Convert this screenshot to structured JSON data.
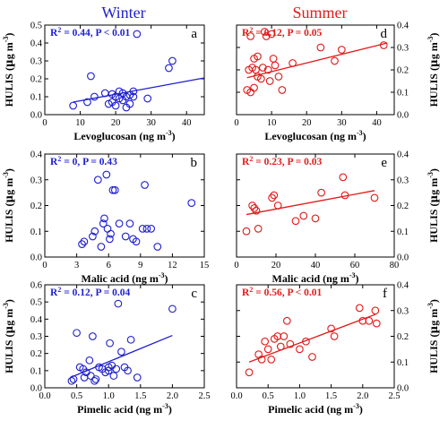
{
  "colors": {
    "winter": "#1f1fd0",
    "summer": "#e21b1b",
    "axis": "#000000"
  },
  "column_titles": {
    "winter": "Winter",
    "summer": "Summer"
  },
  "y_axis_label": {
    "main": "HULIS (",
    "mu": "µ",
    "g": "g m",
    "exp": "-3",
    "close": ")"
  },
  "chart_data": [
    {
      "id": "a",
      "type": "scatter",
      "series": "winter",
      "letter": "a",
      "stats": {
        "r2": "0.44",
        "p": "P < 0.01"
      },
      "xlabel": {
        "main": "Levoglucosan (ng m",
        "exp": "-3",
        "close": ")"
      },
      "xlim": [
        0,
        45
      ],
      "ylim": [
        0,
        0.5
      ],
      "xticks": [
        0,
        10,
        20,
        30,
        40
      ],
      "xtick_labels": [
        "0",
        "10",
        "20",
        "30",
        "40"
      ],
      "yticks": [
        0,
        0.1,
        0.2,
        0.3,
        0.4,
        0.5
      ],
      "ytick_labels": [
        "0.0",
        "0.1",
        "0.2",
        "0.3",
        "0.4",
        "0.5"
      ],
      "tick_side": "left",
      "fit": {
        "x": [
          8,
          45
        ],
        "y": [
          0.07,
          0.205
        ]
      },
      "points": [
        [
          8,
          0.05
        ],
        [
          12,
          0.07
        ],
        [
          13,
          0.215
        ],
        [
          14,
          0.1
        ],
        [
          17,
          0.12
        ],
        [
          18,
          0.06
        ],
        [
          19,
          0.07
        ],
        [
          19,
          0.115
        ],
        [
          20,
          0.1
        ],
        [
          20,
          0.05
        ],
        [
          21,
          0.13
        ],
        [
          21,
          0.09
        ],
        [
          22,
          0.12
        ],
        [
          22,
          0.08
        ],
        [
          23,
          0.1
        ],
        [
          23,
          0.04
        ],
        [
          24,
          0.11
        ],
        [
          24,
          0.06
        ],
        [
          25,
          0.13
        ],
        [
          25,
          0.1
        ],
        [
          26,
          0.45
        ],
        [
          29,
          0.09
        ],
        [
          35,
          0.26
        ],
        [
          36,
          0.3
        ]
      ]
    },
    {
      "id": "d",
      "type": "scatter",
      "series": "summer",
      "letter": "d",
      "stats": {
        "r2": "0.12",
        "p": "P = 0.05"
      },
      "xlabel": {
        "main": "Levoglucosan (ng m",
        "exp": "-3",
        "close": ")"
      },
      "xlim": [
        0,
        45
      ],
      "ylim": [
        0,
        0.4
      ],
      "xticks": [
        0,
        10,
        20,
        30,
        40
      ],
      "xtick_labels": [
        "0",
        "10",
        "20",
        "30",
        "40"
      ],
      "yticks": [
        0,
        0.1,
        0.2,
        0.3,
        0.4
      ],
      "ytick_labels": [
        "0.0",
        "0.1",
        "0.2",
        "0.3",
        "0.4"
      ],
      "tick_side": "right",
      "fit": {
        "x": [
          3,
          43
        ],
        "y": [
          0.165,
          0.32
        ]
      },
      "points": [
        [
          3,
          0.11
        ],
        [
          3.5,
          0.2
        ],
        [
          4,
          0.1
        ],
        [
          4,
          0.35
        ],
        [
          4.5,
          0.21
        ],
        [
          5,
          0.12
        ],
        [
          5,
          0.25
        ],
        [
          5.5,
          0.2
        ],
        [
          6,
          0.17
        ],
        [
          6,
          0.26
        ],
        [
          7,
          0.16
        ],
        [
          7.5,
          0.21
        ],
        [
          8,
          0.37
        ],
        [
          8.5,
          0.35
        ],
        [
          9,
          0.2
        ],
        [
          9.5,
          0.15
        ],
        [
          10,
          0.36
        ],
        [
          10.5,
          0.25
        ],
        [
          11,
          0.22
        ],
        [
          12,
          0.17
        ],
        [
          13,
          0.11
        ],
        [
          16,
          0.23
        ],
        [
          24,
          0.3
        ],
        [
          28,
          0.24
        ],
        [
          30,
          0.29
        ],
        [
          42,
          0.31
        ]
      ]
    },
    {
      "id": "b",
      "type": "scatter",
      "series": "winter",
      "letter": "b",
      "stats": {
        "r2": "0",
        "p": "P = 0.43"
      },
      "xlabel": {
        "main": "Malic acid (ng m",
        "exp": "-3",
        "close": ")"
      },
      "xlim": [
        0,
        15
      ],
      "ylim": [
        0,
        0.4
      ],
      "xticks": [
        0,
        3,
        6,
        9,
        12,
        15
      ],
      "xtick_labels": [
        "0",
        "3",
        "6",
        "9",
        "12",
        "15"
      ],
      "yticks": [
        0,
        0.1,
        0.2,
        0.3,
        0.4
      ],
      "ytick_labels": [
        "0.0",
        "0.1",
        "0.2",
        "0.3",
        "0.4"
      ],
      "tick_side": "left",
      "fit": null,
      "points": [
        [
          3.5,
          0.05
        ],
        [
          3.7,
          0.06
        ],
        [
          4.5,
          0.08
        ],
        [
          4.7,
          0.1
        ],
        [
          5,
          0.3
        ],
        [
          5.3,
          0.04
        ],
        [
          5.5,
          0.13
        ],
        [
          5.6,
          0.15
        ],
        [
          5.8,
          0.32
        ],
        [
          5.9,
          0.11
        ],
        [
          6.1,
          0.07
        ],
        [
          6.2,
          0.09
        ],
        [
          6.4,
          0.26
        ],
        [
          6.6,
          0.26
        ],
        [
          7,
          0.13
        ],
        [
          7.6,
          0.08
        ],
        [
          8,
          0.13
        ],
        [
          8.3,
          0.07
        ],
        [
          8.6,
          0.06
        ],
        [
          9.2,
          0.11
        ],
        [
          9.4,
          0.28
        ],
        [
          9.6,
          0.11
        ],
        [
          10,
          0.11
        ],
        [
          10.6,
          0.04
        ],
        [
          13.8,
          0.21
        ]
      ]
    },
    {
      "id": "e",
      "type": "scatter",
      "series": "summer",
      "letter": "e",
      "stats": {
        "r2": "0.23",
        "p": "P = 0.03"
      },
      "xlabel": {
        "main": "Malic acid (ng m",
        "exp": "-3",
        "close": ")"
      },
      "xlim": [
        0,
        80
      ],
      "ylim": [
        0,
        0.4
      ],
      "xticks": [
        0,
        20,
        40,
        60,
        80
      ],
      "xtick_labels": [
        "0",
        "20",
        "40",
        "60",
        "80"
      ],
      "yticks": [
        0,
        0.1,
        0.2,
        0.3,
        0.4
      ],
      "ytick_labels": [
        "0.0",
        "0.1",
        "0.2",
        "0.3",
        "0.4"
      ],
      "tick_side": "right",
      "fit": {
        "x": [
          5,
          70
        ],
        "y": [
          0.165,
          0.258
        ]
      },
      "points": [
        [
          5,
          0.1
        ],
        [
          8,
          0.2
        ],
        [
          9,
          0.19
        ],
        [
          10,
          0.18
        ],
        [
          11,
          0.11
        ],
        [
          18,
          0.23
        ],
        [
          19,
          0.24
        ],
        [
          21,
          0.2
        ],
        [
          30,
          0.14
        ],
        [
          34,
          0.16
        ],
        [
          40,
          0.15
        ],
        [
          43,
          0.25
        ],
        [
          54,
          0.31
        ],
        [
          55,
          0.24
        ],
        [
          70,
          0.23
        ]
      ]
    },
    {
      "id": "c",
      "type": "scatter",
      "series": "winter",
      "letter": "c",
      "stats": {
        "r2": "0.12",
        "p": "P = 0.04"
      },
      "xlabel": {
        "main": "Pimelic acid (ng m",
        "exp": "-3",
        "close": ")"
      },
      "xlim": [
        0,
        2.5
      ],
      "ylim": [
        0,
        0.6
      ],
      "xticks": [
        0,
        0.5,
        1,
        1.5,
        2,
        2.5
      ],
      "xtick_labels": [
        "0.0",
        "0.5",
        "1.0",
        "1.5",
        "2.0",
        "2.5"
      ],
      "yticks": [
        0,
        0.1,
        0.2,
        0.3,
        0.4,
        0.5,
        0.6
      ],
      "ytick_labels": [
        "0.0",
        "0.1",
        "0.2",
        "0.3",
        "0.4",
        "0.5",
        "0.6"
      ],
      "tick_side": "left",
      "fit": {
        "x": [
          0.4,
          2.0
        ],
        "y": [
          0.06,
          0.305
        ]
      },
      "points": [
        [
          0.42,
          0.04
        ],
        [
          0.45,
          0.05
        ],
        [
          0.5,
          0.32
        ],
        [
          0.55,
          0.12
        ],
        [
          0.6,
          0.11
        ],
        [
          0.62,
          0.06
        ],
        [
          0.65,
          0.09
        ],
        [
          0.7,
          0.16
        ],
        [
          0.72,
          0.07
        ],
        [
          0.75,
          0.3
        ],
        [
          0.78,
          0.04
        ],
        [
          0.8,
          0.05
        ],
        [
          0.85,
          0.12
        ],
        [
          0.9,
          0.11
        ],
        [
          0.95,
          0.09
        ],
        [
          1.0,
          0.12
        ],
        [
          1.0,
          0.1
        ],
        [
          1.02,
          0.26
        ],
        [
          1.05,
          0.13
        ],
        [
          1.08,
          0.07
        ],
        [
          1.12,
          0.11
        ],
        [
          1.15,
          0.49
        ],
        [
          1.2,
          0.21
        ],
        [
          1.25,
          0.12
        ],
        [
          1.3,
          0.1
        ],
        [
          1.35,
          0.28
        ],
        [
          1.45,
          0.06
        ],
        [
          2.0,
          0.46
        ]
      ]
    },
    {
      "id": "f",
      "type": "scatter",
      "series": "summer",
      "letter": "f",
      "stats": {
        "r2": "0.56",
        "p": "P < 0.01"
      },
      "xlabel": {
        "main": "Pimelic acid (ng m",
        "exp": "-3",
        "close": ")"
      },
      "xlim": [
        0,
        2.5
      ],
      "ylim": [
        0,
        0.4
      ],
      "xticks": [
        0,
        0.5,
        1,
        1.5,
        2,
        2.5
      ],
      "xtick_labels": [
        "0.0",
        "0.5",
        "1.0",
        "1.5",
        "2.0",
        "2.5"
      ],
      "yticks": [
        0,
        0.1,
        0.2,
        0.3,
        0.4
      ],
      "ytick_labels": [
        "0.0",
        "0.1",
        "0.2",
        "0.3",
        "0.4"
      ],
      "tick_side": "right",
      "fit": {
        "x": [
          0.2,
          2.2
        ],
        "y": [
          0.1,
          0.285
        ]
      },
      "points": [
        [
          0.2,
          0.06
        ],
        [
          0.35,
          0.13
        ],
        [
          0.4,
          0.11
        ],
        [
          0.45,
          0.18
        ],
        [
          0.5,
          0.15
        ],
        [
          0.55,
          0.11
        ],
        [
          0.6,
          0.19
        ],
        [
          0.65,
          0.2
        ],
        [
          0.7,
          0.16
        ],
        [
          0.75,
          0.2
        ],
        [
          0.8,
          0.26
        ],
        [
          0.85,
          0.17
        ],
        [
          1.0,
          0.15
        ],
        [
          1.1,
          0.18
        ],
        [
          1.2,
          0.12
        ],
        [
          1.5,
          0.23
        ],
        [
          1.55,
          0.2
        ],
        [
          1.95,
          0.31
        ],
        [
          2.0,
          0.26
        ],
        [
          2.1,
          0.26
        ],
        [
          2.2,
          0.3
        ],
        [
          2.22,
          0.25
        ]
      ]
    }
  ]
}
